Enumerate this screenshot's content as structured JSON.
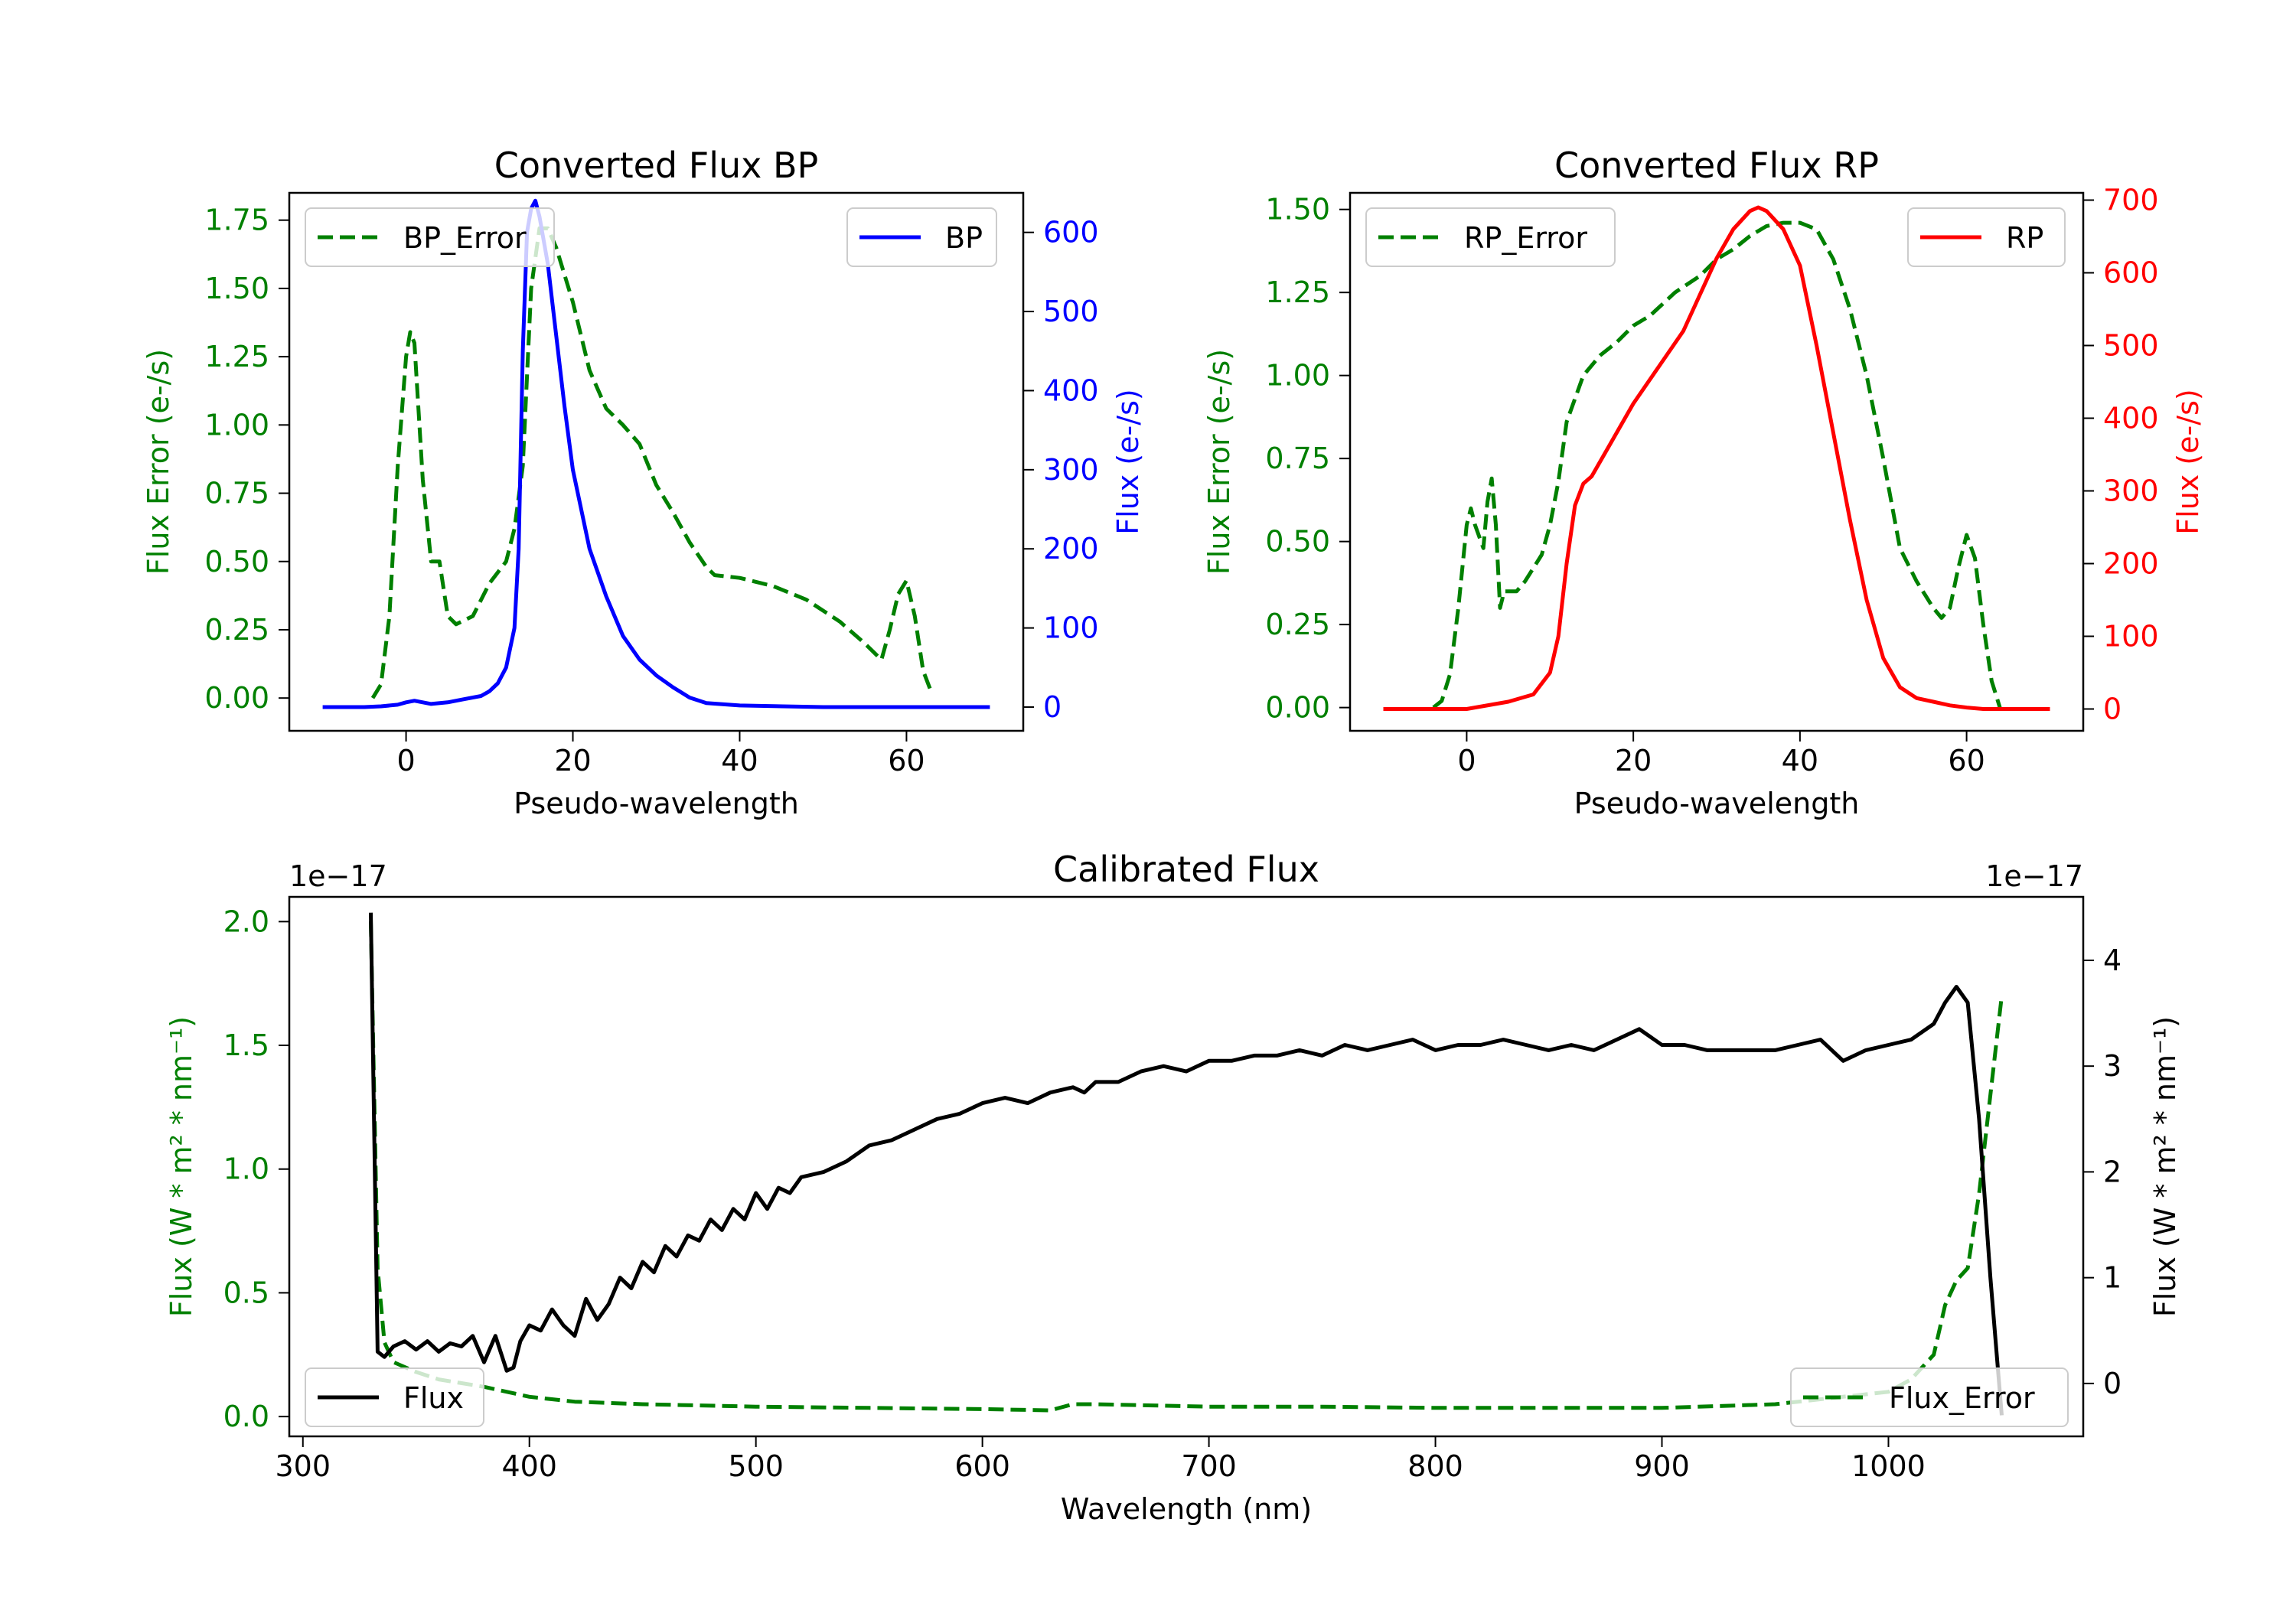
{
  "chart_data": [
    {
      "id": "bp",
      "type": "line",
      "title": "Converted Flux BP",
      "xlabel": "Pseudo-wavelength",
      "ylabel_left": "Flux Error (e-/s)",
      "ylabel_right": "Flux (e-/s)",
      "xlim": [
        -14,
        74
      ],
      "ylim_left": [
        -0.12,
        1.85
      ],
      "ylim_right": [
        -30,
        650
      ],
      "xticks": [
        0,
        20,
        40,
        60
      ],
      "xtick_labels": [
        "0",
        "20",
        "40",
        "60"
      ],
      "yticks_left": [
        0,
        0.25,
        0.5,
        0.75,
        1.0,
        1.25,
        1.5,
        1.75
      ],
      "ytick_labels_left": [
        "0.00",
        "0.25",
        "0.50",
        "0.75",
        "1.00",
        "1.25",
        "1.50",
        "1.75"
      ],
      "yticks_right": [
        0,
        100,
        200,
        300,
        400,
        500,
        600
      ],
      "ytick_labels_right": [
        "0",
        "100",
        "200",
        "300",
        "400",
        "500",
        "600"
      ],
      "legend_left": "BP_Error",
      "legend_right": "BP",
      "colors": {
        "error": "#008000",
        "flux": "#0000ff",
        "left_axis": "#008000",
        "right_axis": "#0000ff"
      },
      "series": [
        {
          "name": "BP_Error",
          "axis": "left",
          "style": "dashed",
          "x": [
            -4,
            -3,
            -2,
            -1,
            0,
            0.5,
            1,
            2,
            3,
            4,
            5,
            6,
            8,
            10,
            12,
            13,
            14,
            15,
            16,
            17,
            18,
            20,
            22,
            24,
            26,
            28,
            30,
            32,
            34,
            36,
            37,
            40,
            44,
            48,
            52,
            55,
            57,
            58,
            59,
            60,
            61,
            62,
            63
          ],
          "y": [
            0.0,
            0.05,
            0.3,
            0.85,
            1.25,
            1.34,
            1.3,
            0.8,
            0.5,
            0.5,
            0.3,
            0.27,
            0.3,
            0.42,
            0.5,
            0.62,
            0.85,
            1.5,
            1.72,
            1.72,
            1.65,
            1.45,
            1.2,
            1.06,
            1.0,
            0.93,
            0.78,
            0.68,
            0.57,
            0.48,
            0.45,
            0.44,
            0.41,
            0.36,
            0.28,
            0.2,
            0.14,
            0.25,
            0.38,
            0.43,
            0.3,
            0.1,
            0.02
          ]
        },
        {
          "name": "BP",
          "axis": "right",
          "style": "solid",
          "x": [
            -10,
            -5,
            -3,
            -1,
            0,
            1,
            2,
            3,
            5,
            7,
            9,
            10,
            11,
            12,
            13,
            13.5,
            14,
            14.5,
            15,
            15.5,
            16,
            17,
            18,
            19,
            20,
            21,
            22,
            24,
            26,
            28,
            30,
            32,
            34,
            36,
            40,
            50,
            60,
            70
          ],
          "y": [
            0,
            0,
            1,
            3,
            6,
            8,
            6,
            4,
            6,
            10,
            14,
            20,
            30,
            50,
            100,
            200,
            450,
            600,
            630,
            640,
            620,
            560,
            470,
            380,
            300,
            250,
            200,
            140,
            90,
            60,
            40,
            25,
            12,
            5,
            2,
            0,
            0,
            0
          ]
        }
      ]
    },
    {
      "id": "rp",
      "type": "line",
      "title": "Converted Flux RP",
      "xlabel": "Pseudo-wavelength",
      "ylabel_left": "Flux Error (e-/s)",
      "ylabel_right": "Flux (e-/s)",
      "xlim": [
        -14,
        74
      ],
      "ylim_left": [
        -0.07,
        1.55
      ],
      "ylim_right": [
        -30,
        710
      ],
      "xticks": [
        0,
        20,
        40,
        60
      ],
      "xtick_labels": [
        "0",
        "20",
        "40",
        "60"
      ],
      "yticks_left": [
        0,
        0.25,
        0.5,
        0.75,
        1.0,
        1.25,
        1.5
      ],
      "ytick_labels_left": [
        "0.00",
        "0.25",
        "0.50",
        "0.75",
        "1.00",
        "1.25",
        "1.50"
      ],
      "yticks_right": [
        0,
        100,
        200,
        300,
        400,
        500,
        600,
        700
      ],
      "ytick_labels_right": [
        "0",
        "100",
        "200",
        "300",
        "400",
        "500",
        "600",
        "700"
      ],
      "legend_left": "RP_Error",
      "legend_right": "RP",
      "colors": {
        "error": "#008000",
        "flux": "#ff0000",
        "left_axis": "#008000",
        "right_axis": "#ff0000"
      },
      "series": [
        {
          "name": "RP_Error",
          "axis": "left",
          "style": "dashed",
          "x": [
            -4,
            -3,
            -2,
            -1,
            0,
            0.5,
            1,
            2,
            2.5,
            3,
            3.5,
            4,
            4.5,
            5,
            6,
            7,
            8,
            9,
            10,
            11,
            12,
            14,
            16,
            18,
            20,
            22,
            25,
            28,
            30,
            32,
            34,
            36,
            38,
            40,
            42,
            44,
            46,
            48,
            50,
            52,
            54,
            55,
            56,
            57,
            58,
            59,
            60,
            61,
            62,
            63,
            64
          ],
          "y": [
            0.0,
            0.02,
            0.1,
            0.3,
            0.55,
            0.6,
            0.55,
            0.48,
            0.62,
            0.69,
            0.55,
            0.3,
            0.35,
            0.35,
            0.35,
            0.38,
            0.42,
            0.46,
            0.55,
            0.68,
            0.86,
            1.0,
            1.06,
            1.1,
            1.15,
            1.18,
            1.25,
            1.3,
            1.35,
            1.38,
            1.42,
            1.45,
            1.46,
            1.46,
            1.44,
            1.35,
            1.2,
            1.0,
            0.75,
            0.48,
            0.38,
            0.34,
            0.3,
            0.27,
            0.3,
            0.42,
            0.52,
            0.45,
            0.25,
            0.08,
            0.0
          ]
        },
        {
          "name": "RP",
          "axis": "right",
          "style": "solid",
          "x": [
            -10,
            -5,
            0,
            5,
            8,
            10,
            11,
            12,
            13,
            14,
            15,
            17,
            20,
            23,
            26,
            28,
            30,
            32,
            34,
            35,
            36,
            38,
            40,
            42,
            44,
            46,
            48,
            50,
            52,
            54,
            56,
            58,
            60,
            62,
            64,
            66,
            70
          ],
          "y": [
            0,
            0,
            0,
            10,
            20,
            50,
            100,
            200,
            280,
            310,
            320,
            360,
            420,
            470,
            520,
            570,
            620,
            660,
            685,
            690,
            685,
            660,
            610,
            500,
            380,
            260,
            150,
            70,
            30,
            15,
            10,
            5,
            2,
            0,
            0,
            0,
            0
          ]
        }
      ]
    },
    {
      "id": "cal",
      "type": "line",
      "title": "Calibrated Flux",
      "xlabel": "Wavelength (nm)",
      "ylabel_left": "Flux (W * m² * nm⁻¹)",
      "ylabel_right": "Flux (W * m² * nm⁻¹)",
      "offset_left": "1e−17",
      "offset_right": "1e−17",
      "xlim": [
        294,
        1086
      ],
      "ylim_left": [
        -0.08,
        2.1
      ],
      "ylim_right": [
        -0.5,
        4.6
      ],
      "xticks": [
        300,
        400,
        500,
        600,
        700,
        800,
        900,
        1000
      ],
      "xtick_labels": [
        "300",
        "400",
        "500",
        "600",
        "700",
        "800",
        "900",
        "1000"
      ],
      "yticks_left": [
        0,
        0.5,
        1.0,
        1.5,
        2.0
      ],
      "ytick_labels_left": [
        "0.0",
        "0.5",
        "1.0",
        "1.5",
        "2.0"
      ],
      "yticks_right": [
        0,
        1,
        2,
        3,
        4
      ],
      "ytick_labels_right": [
        "0",
        "1",
        "2",
        "3",
        "4"
      ],
      "legend_left": "Flux",
      "legend_right": "Flux_Error",
      "colors": {
        "error": "#008000",
        "flux": "#000000",
        "left_axis": "#008000",
        "right_axis": "#000000"
      },
      "series": [
        {
          "name": "Flux_Error",
          "axis": "left",
          "style": "dashed",
          "x": [
            330,
            333,
            336,
            340,
            350,
            360,
            380,
            400,
            420,
            450,
            500,
            550,
            600,
            630,
            640,
            650,
            700,
            750,
            800,
            850,
            900,
            950,
            1000,
            1010,
            1020,
            1025,
            1030,
            1035,
            1040,
            1045,
            1050
          ],
          "y": [
            2.0,
            0.6,
            0.3,
            0.22,
            0.18,
            0.15,
            0.12,
            0.08,
            0.06,
            0.05,
            0.04,
            0.035,
            0.03,
            0.025,
            0.05,
            0.05,
            0.04,
            0.04,
            0.035,
            0.035,
            0.035,
            0.05,
            0.1,
            0.15,
            0.25,
            0.45,
            0.55,
            0.6,
            0.9,
            1.3,
            1.7
          ]
        },
        {
          "name": "Flux",
          "axis": "right",
          "style": "solid",
          "x": [
            330,
            333,
            336,
            340,
            345,
            350,
            355,
            360,
            365,
            370,
            375,
            380,
            385,
            390,
            393,
            396,
            400,
            405,
            410,
            415,
            420,
            425,
            430,
            435,
            440,
            445,
            450,
            455,
            460,
            465,
            470,
            475,
            480,
            485,
            490,
            495,
            500,
            505,
            510,
            515,
            520,
            530,
            540,
            550,
            560,
            570,
            580,
            590,
            600,
            610,
            620,
            630,
            640,
            645,
            650,
            660,
            670,
            680,
            690,
            700,
            710,
            720,
            730,
            740,
            750,
            760,
            770,
            780,
            790,
            800,
            810,
            820,
            830,
            840,
            850,
            860,
            870,
            880,
            890,
            900,
            910,
            920,
            930,
            940,
            950,
            960,
            970,
            980,
            990,
            1000,
            1010,
            1020,
            1025,
            1030,
            1035,
            1040,
            1045,
            1050
          ],
          "y": [
            4.45,
            0.3,
            0.25,
            0.35,
            0.4,
            0.32,
            0.4,
            0.3,
            0.38,
            0.35,
            0.45,
            0.2,
            0.45,
            0.12,
            0.15,
            0.4,
            0.55,
            0.5,
            0.7,
            0.55,
            0.45,
            0.8,
            0.6,
            0.75,
            1.0,
            0.9,
            1.15,
            1.05,
            1.3,
            1.2,
            1.4,
            1.35,
            1.55,
            1.45,
            1.65,
            1.55,
            1.8,
            1.65,
            1.85,
            1.8,
            1.95,
            2.0,
            2.1,
            2.25,
            2.3,
            2.4,
            2.5,
            2.55,
            2.65,
            2.7,
            2.65,
            2.75,
            2.8,
            2.75,
            2.85,
            2.85,
            2.95,
            3.0,
            2.95,
            3.05,
            3.05,
            3.1,
            3.1,
            3.15,
            3.1,
            3.2,
            3.15,
            3.2,
            3.25,
            3.15,
            3.2,
            3.2,
            3.25,
            3.2,
            3.15,
            3.2,
            3.15,
            3.25,
            3.35,
            3.2,
            3.2,
            3.15,
            3.15,
            3.15,
            3.15,
            3.2,
            3.25,
            3.05,
            3.15,
            3.2,
            3.25,
            3.4,
            3.6,
            3.75,
            3.6,
            2.5,
            1.0,
            -0.3
          ]
        }
      ]
    }
  ]
}
